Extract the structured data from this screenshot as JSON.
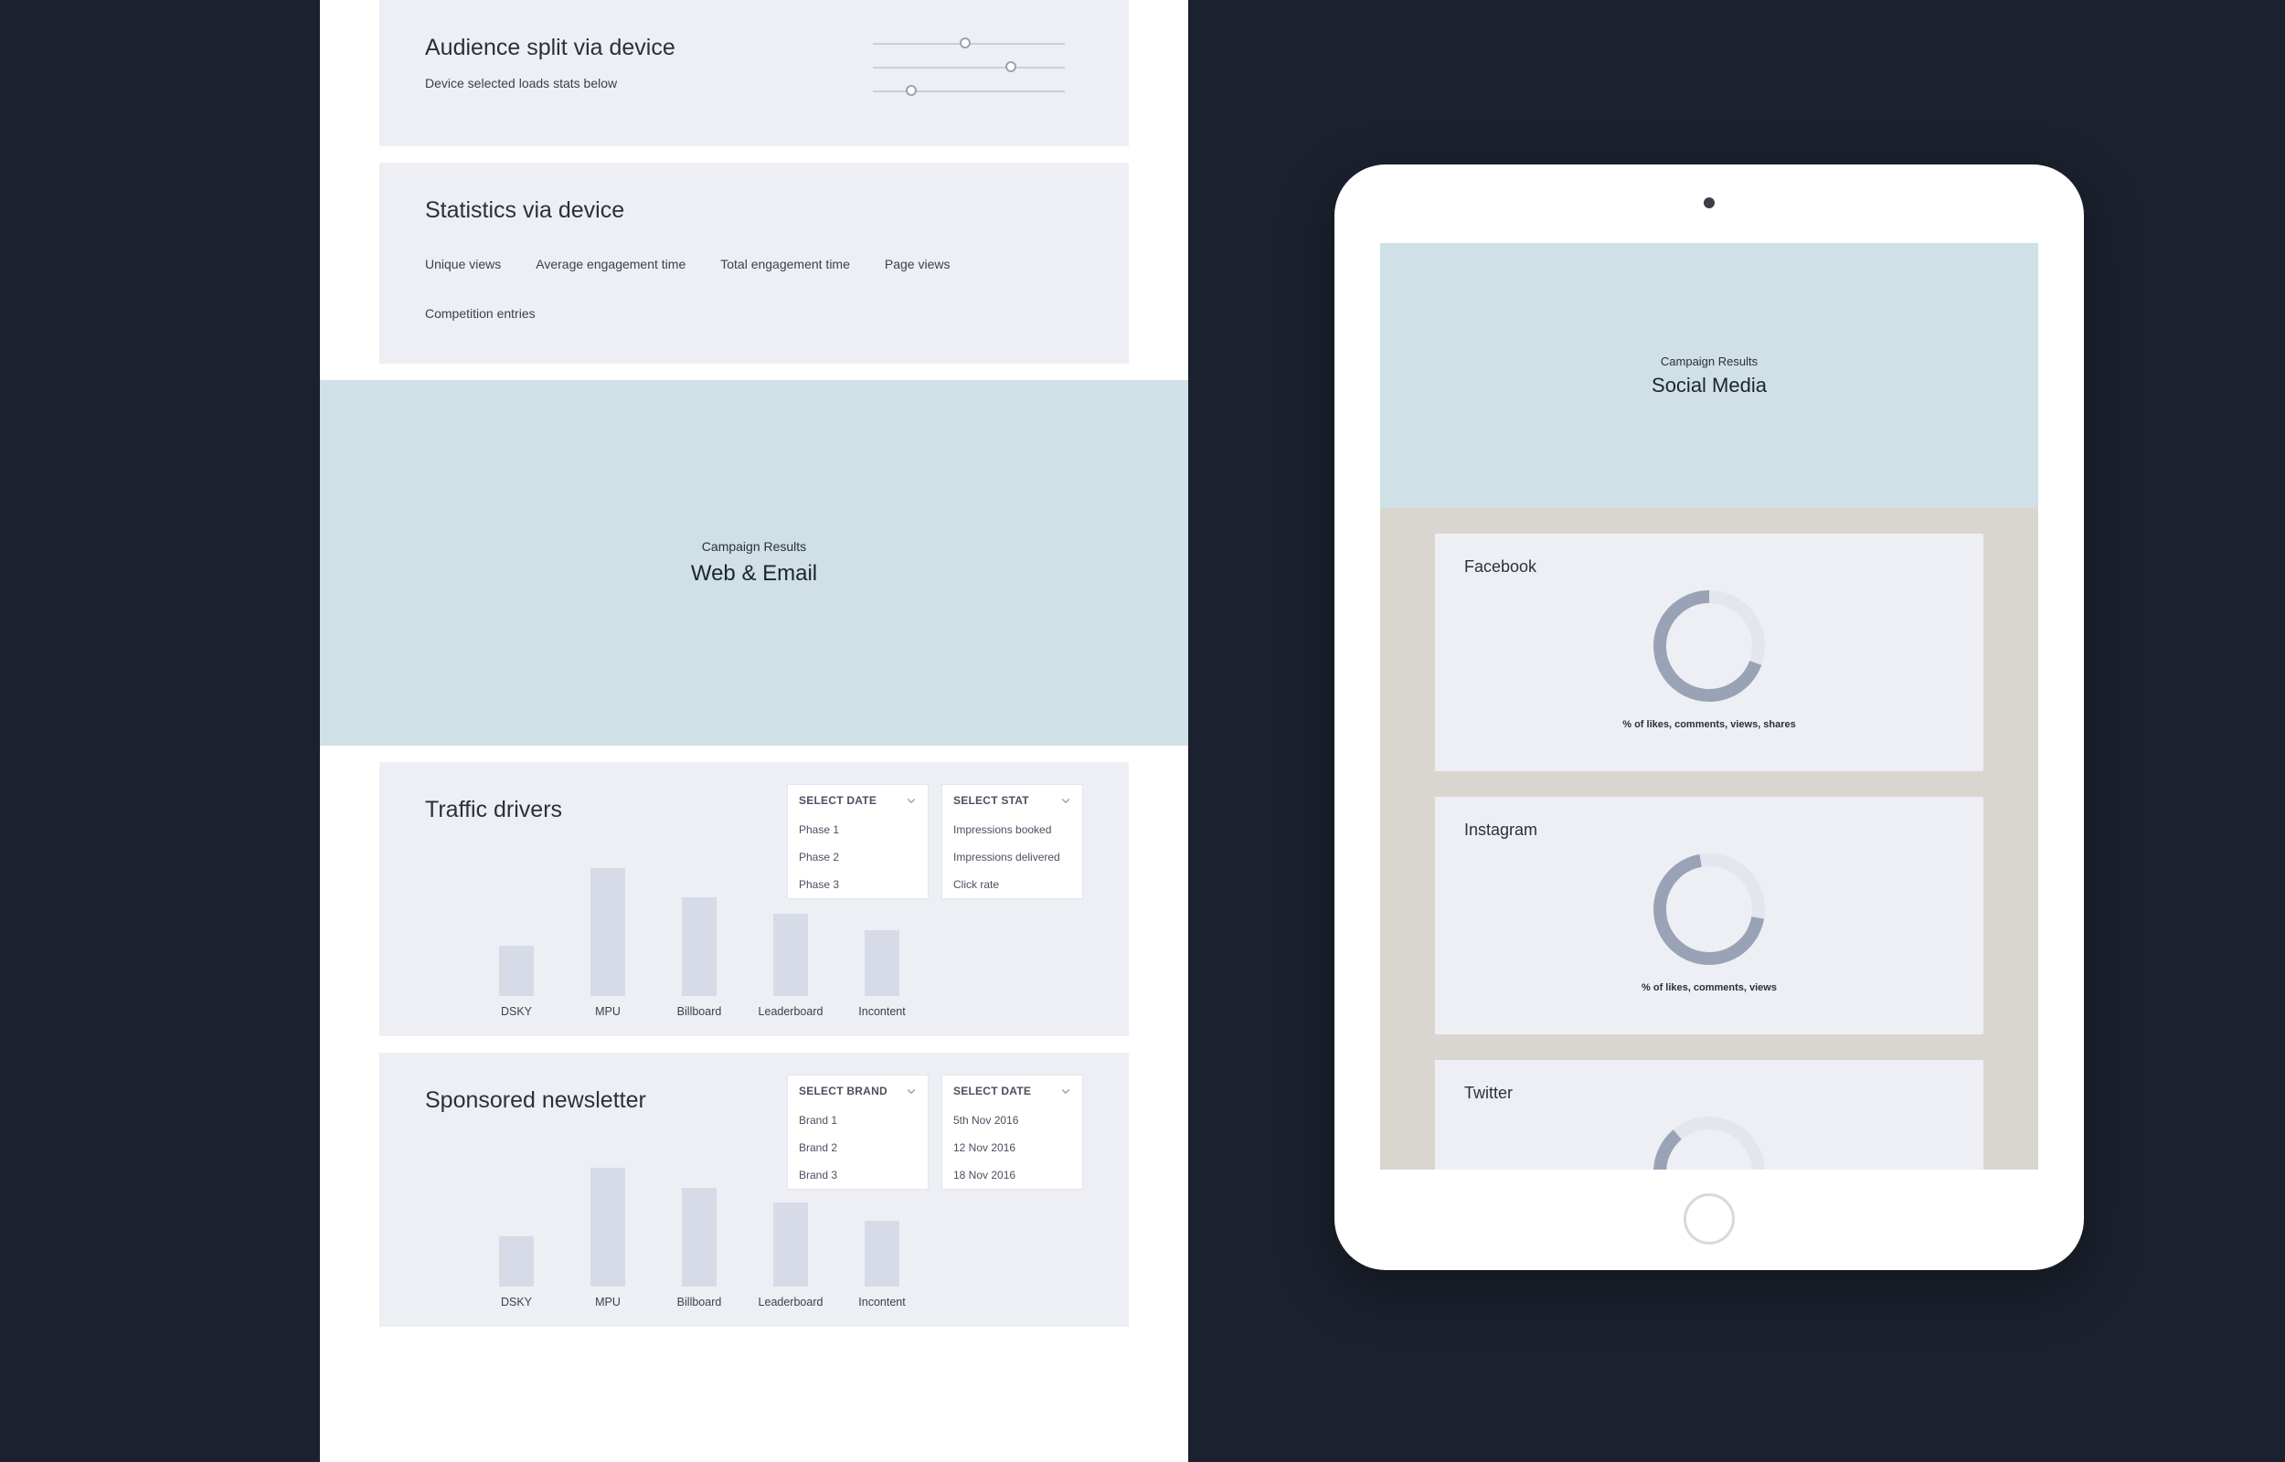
{
  "colors": {
    "page_bg": "#1b212e",
    "desktop_bg": "#ffffff",
    "card_bg": "#edeff4",
    "hero_bg": "#cfe0e6",
    "bar_fill": "#d6dbe7",
    "text_primary": "#2b303b",
    "text_secondary": "#3a3f4a",
    "slider_track": "#c9cfdc",
    "slider_ring": "#9aa3b5",
    "dropdown_border": "#e2e5ee",
    "tablet_bg": "#ffffff",
    "tablet_screen_bg": "#d9d6cf",
    "donut_track": "#e3e6ee",
    "donut_arc": "#9aa3b5"
  },
  "audience_card": {
    "title": "Audience split via device",
    "subtitle": "Device selected loads stats below",
    "sliders": [
      {
        "pos_pct": 48
      },
      {
        "pos_pct": 72
      },
      {
        "pos_pct": 20
      }
    ]
  },
  "stats_card": {
    "title": "Statistics via device",
    "metrics": [
      "Unique views",
      "Average engagement time",
      "Total engagement time",
      "Page views",
      "Competition entries"
    ]
  },
  "hero": {
    "eyebrow": "Campaign Results",
    "title": "Web & Email"
  },
  "traffic_chart": {
    "title": "Traffic drivers",
    "dropdown_date": {
      "label": "SELECT DATE",
      "items": [
        "Phase 1",
        "Phase 2",
        "Phase 3"
      ]
    },
    "dropdown_stat": {
      "label": "SELECT STAT",
      "items": [
        "Impressions booked",
        "Impressions delivered",
        "Click rate"
      ]
    },
    "bars": [
      {
        "label": "DSKY",
        "value": 55
      },
      {
        "label": "MPU",
        "value": 140
      },
      {
        "label": "Billboard",
        "value": 108
      },
      {
        "label": "Leaderboard",
        "value": 90
      },
      {
        "label": "Incontent",
        "value": 72
      }
    ],
    "ylim": [
      0,
      150
    ]
  },
  "newsletter_chart": {
    "title": "Sponsored newsletter",
    "dropdown_brand": {
      "label": "SELECT BRAND",
      "items": [
        "Brand 1",
        "Brand 2",
        "Brand 3"
      ]
    },
    "dropdown_date": {
      "label": "SELECT DATE",
      "items": [
        "5th Nov 2016",
        "12 Nov 2016",
        "18 Nov 2016"
      ]
    },
    "bars": [
      {
        "label": "DSKY",
        "value": 55
      },
      {
        "label": "MPU",
        "value": 130
      },
      {
        "label": "Billboard",
        "value": 108
      },
      {
        "label": "Leaderboard",
        "value": 92
      },
      {
        "label": "Incontent",
        "value": 72
      }
    ],
    "ylim": [
      0,
      150
    ]
  },
  "tablet": {
    "hero": {
      "eyebrow": "Campaign Results",
      "title": "Social Media"
    },
    "cards": [
      {
        "title": "Facebook",
        "caption": "% of likes, comments, views, shares",
        "arc_start": 110,
        "arc_sweep": 250
      },
      {
        "title": "Instagram",
        "caption": "% of likes, comments, views",
        "arc_start": 100,
        "arc_sweep": 250
      },
      {
        "title": "Twitter",
        "caption": "",
        "arc_start": 120,
        "arc_sweep": 200
      }
    ]
  }
}
